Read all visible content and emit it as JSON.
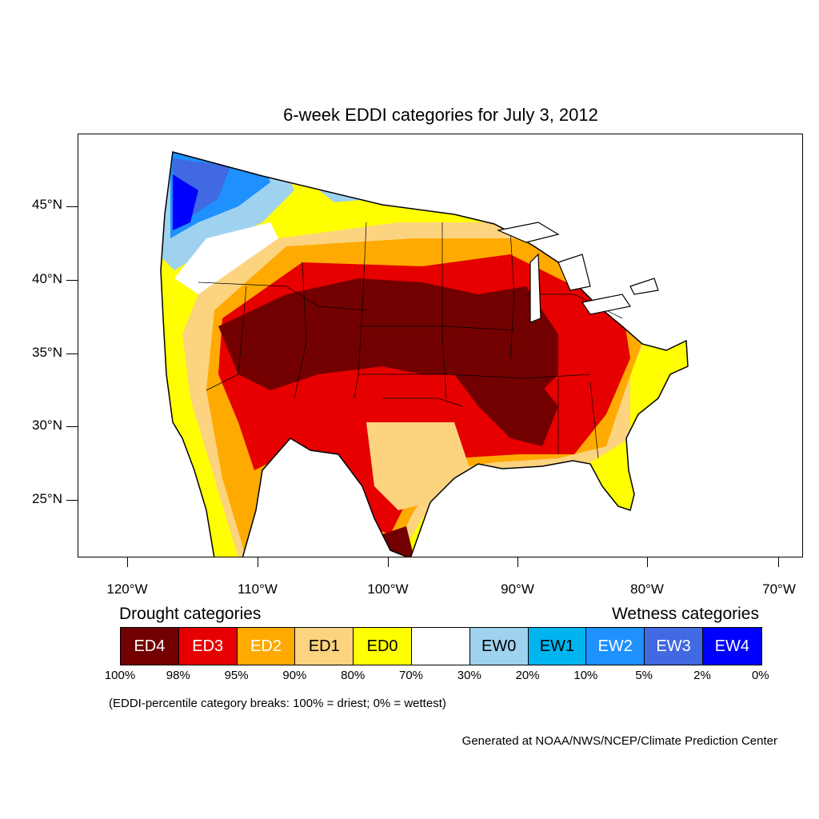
{
  "title": "6-week EDDI categories for July 3, 2012",
  "axes": {
    "lat_ticks": [
      "45°N",
      "40°N",
      "35°N",
      "30°N",
      "25°N"
    ],
    "lon_ticks": [
      "120°W",
      "110°W",
      "100°W",
      "90°W",
      "80°W",
      "70°W"
    ]
  },
  "legend": {
    "drought_heading": "Drought categories",
    "wetness_heading": "Wetness categories",
    "categories": [
      {
        "label": "ED4",
        "color": "#730000",
        "text_color": "#ffffff"
      },
      {
        "label": "ED3",
        "color": "#e60000",
        "text_color": "#ffffff"
      },
      {
        "label": "ED2",
        "color": "#ffaa00",
        "text_color": "#ffffff"
      },
      {
        "label": "ED1",
        "color": "#fcd37f",
        "text_color": "#000000"
      },
      {
        "label": "ED0",
        "color": "#ffff00",
        "text_color": "#000000"
      },
      {
        "label": "",
        "color": "#ffffff",
        "text_color": "#000000"
      },
      {
        "label": "EW0",
        "color": "#9fd2ee",
        "text_color": "#000000"
      },
      {
        "label": "EW1",
        "color": "#00b4f0",
        "text_color": "#000000"
      },
      {
        "label": "EW2",
        "color": "#1e90ff",
        "text_color": "#ffffff"
      },
      {
        "label": "EW3",
        "color": "#4169e1",
        "text_color": "#ffffff"
      },
      {
        "label": "EW4",
        "color": "#0000ff",
        "text_color": "#ffffff"
      }
    ],
    "percentiles": [
      "100%",
      "98%",
      "95%",
      "90%",
      "80%",
      "70%",
      "30%",
      "20%",
      "10%",
      "5%",
      "2%",
      "0%"
    ],
    "note": "(EDDI-percentile category breaks: 100% = driest; 0% = wettest)"
  },
  "credit": "Generated at NOAA/NWS/NCEP/Climate Prediction Center"
}
